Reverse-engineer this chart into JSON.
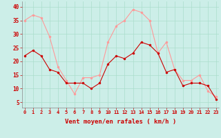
{
  "hours": [
    0,
    1,
    2,
    3,
    4,
    5,
    6,
    7,
    8,
    9,
    10,
    11,
    12,
    13,
    14,
    15,
    16,
    17,
    18,
    19,
    20,
    21,
    22,
    23
  ],
  "wind_avg": [
    22,
    24,
    22,
    17,
    16,
    12,
    12,
    12,
    10,
    12,
    19,
    22,
    21,
    23,
    27,
    26,
    23,
    16,
    17,
    11,
    12,
    12,
    11,
    6
  ],
  "wind_gust": [
    35,
    37,
    36,
    29,
    18,
    13,
    8,
    14,
    14,
    15,
    27,
    33,
    35,
    39,
    38,
    35,
    23,
    27,
    17,
    13,
    13,
    15,
    9,
    7
  ],
  "avg_color": "#cc0000",
  "gust_color": "#ff9999",
  "bg_color": "#cceee8",
  "grid_color": "#aaddcc",
  "xlabel": "Vent moyen/en rafales ( km/h )",
  "ylim": [
    3,
    42
  ],
  "yticks": [
    5,
    10,
    15,
    20,
    25,
    30,
    35,
    40
  ],
  "xlabel_color": "#cc0000"
}
